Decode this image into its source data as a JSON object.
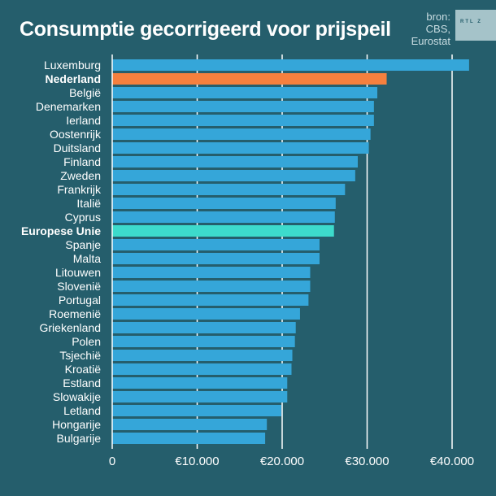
{
  "title": "Consumptie gecorrigeerd voor prijspeil",
  "source": [
    "bron:",
    "CBS,",
    "Eurostat"
  ],
  "logo": "RTL Z",
  "colors": {
    "background": "#255e6c",
    "bar": "#35a6d9",
    "highlight_nl": "#f5803e",
    "highlight_eu": "#3ddbcc",
    "grid": "#ffffff"
  },
  "chart_data": {
    "type": "bar",
    "orientation": "horizontal",
    "title": "Consumptie gecorrigeerd voor prijspeil",
    "xlabel": "",
    "ylabel": "",
    "xlim": [
      0,
      45000
    ],
    "xticks": [
      0,
      10000,
      20000,
      30000,
      40000
    ],
    "xtick_labels": [
      "0",
      "€10.000",
      "€20.000",
      "€30.000",
      "€40.000"
    ],
    "grid": true,
    "categories": [
      "Luxemburg",
      "Nederland",
      "België",
      "Denemarken",
      "Ierland",
      "Oostenrijk",
      "Duitsland",
      "Finland",
      "Zweden",
      "Frankrijk",
      "Italië",
      "Cyprus",
      "Europese Unie",
      "Spanje",
      "Malta",
      "Litouwen",
      "Slovenië",
      "Portugal",
      "Roemenië",
      "Griekenland",
      "Polen",
      "Tsjechië",
      "Kroatië",
      "Estland",
      "Slowakije",
      "Letland",
      "Hongarije",
      "Bulgarije"
    ],
    "values": [
      42000,
      32300,
      31200,
      30800,
      30800,
      30400,
      30200,
      28900,
      28600,
      27400,
      26300,
      26200,
      26100,
      24400,
      24400,
      23300,
      23300,
      23100,
      22100,
      21600,
      21500,
      21200,
      21100,
      20600,
      20600,
      19900,
      18200,
      18000
    ],
    "highlights": {
      "Nederland": "highlight_nl",
      "Europese Unie": "highlight_eu"
    }
  }
}
